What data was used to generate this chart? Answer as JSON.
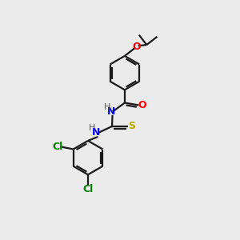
{
  "background_color": "#ebebeb",
  "bond_color": "#1a1a1a",
  "atom_colors": {
    "O": "#ff0000",
    "N": "#0000ee",
    "S": "#bbaa00",
    "Cl": "#008000",
    "H": "#555555"
  },
  "figsize": [
    3.0,
    3.0
  ],
  "dpi": 100,
  "lw": 1.6,
  "ring_r": 0.72,
  "font_size": 9
}
